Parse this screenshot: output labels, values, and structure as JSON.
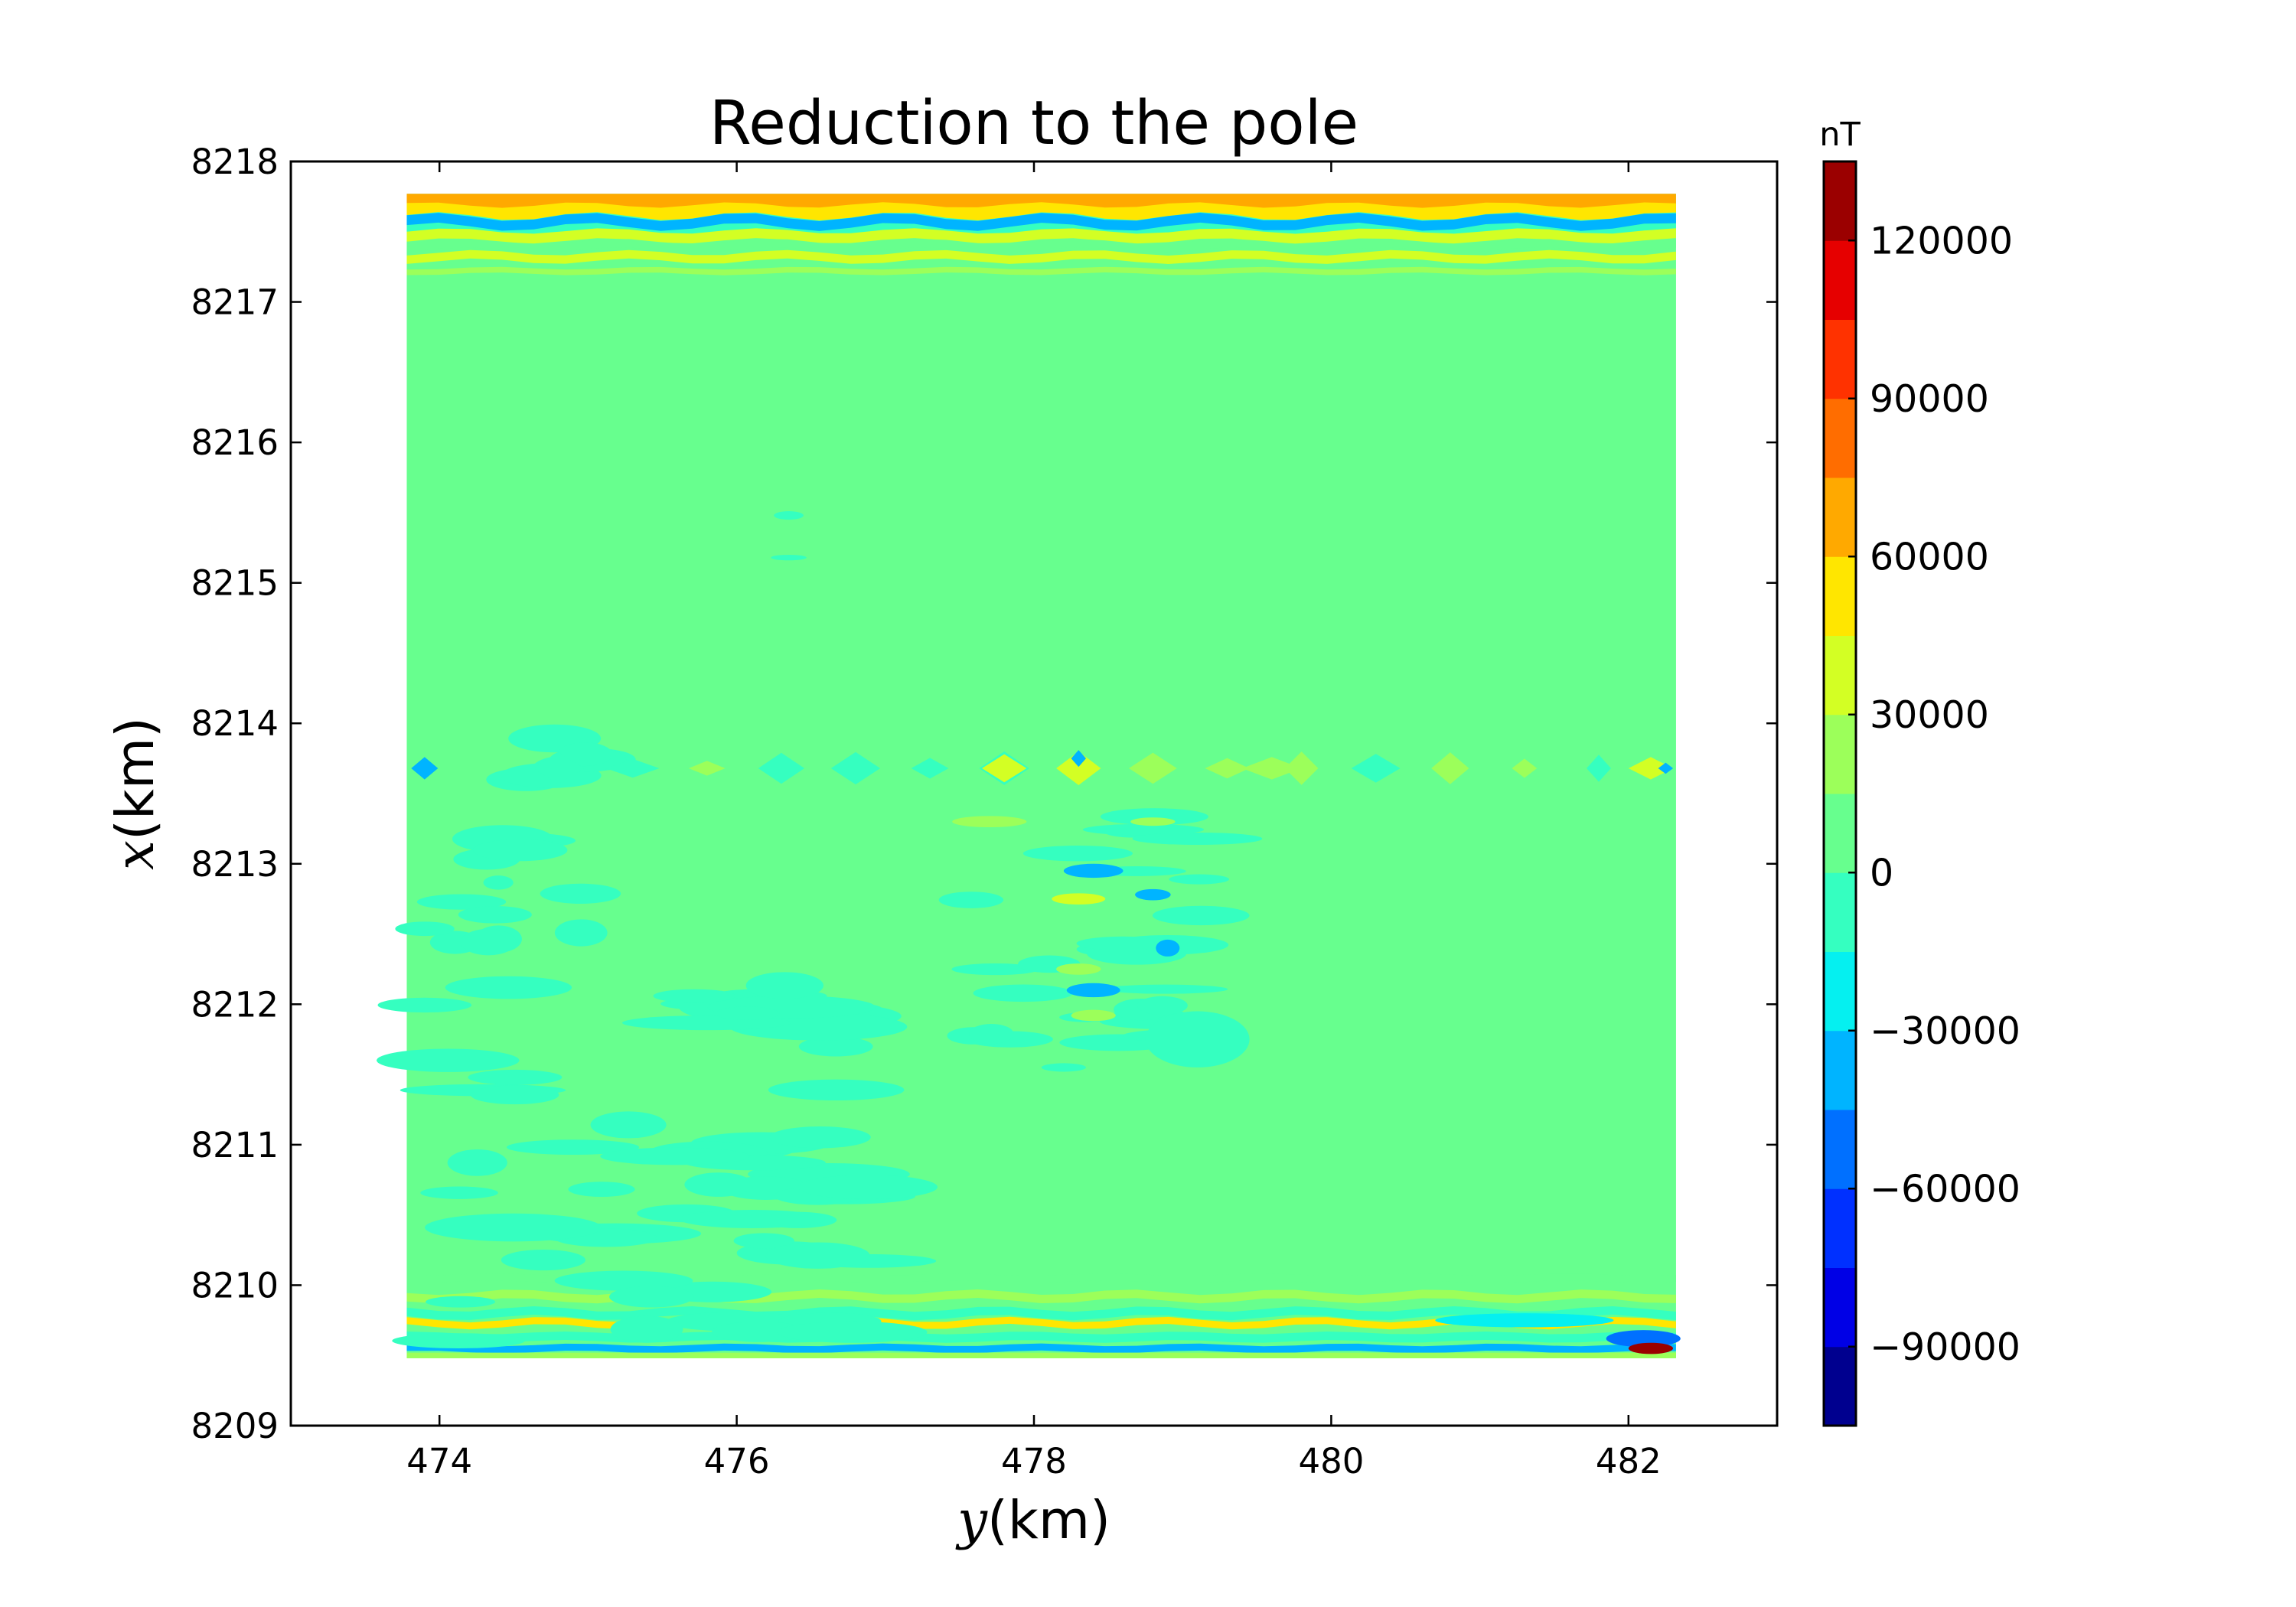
{
  "chart_data": {
    "type": "heatmap",
    "subtype": "filled-contour",
    "title": "Reduction to the pole",
    "xlabel_var": "y",
    "xlabel_unit": "(km)",
    "ylabel_var": "x",
    "ylabel_unit": "(km)",
    "xlim": [
      473,
      483
    ],
    "ylim": [
      8209,
      8218
    ],
    "xticks": [
      474,
      476,
      478,
      480,
      482
    ],
    "yticks": [
      8209,
      8210,
      8211,
      8212,
      8213,
      8214,
      8215,
      8216,
      8217,
      8218
    ],
    "data_extent": {
      "y_min": 473.78,
      "y_max": 482.32,
      "x_min": 8209.48,
      "x_max": 8217.77
    },
    "colorbar": {
      "label": "nT",
      "min": -105000,
      "max": 135000,
      "level_step": 15000,
      "ticks": [
        -90000,
        -60000,
        -30000,
        0,
        30000,
        60000,
        90000,
        120000
      ],
      "tick_labels": [
        "−90000",
        "−60000",
        "−30000",
        "0",
        "30000",
        "60000",
        "90000",
        "120000"
      ],
      "colors": [
        "#00008f",
        "#0000e6",
        "#0030ff",
        "#0070ff",
        "#00b4ff",
        "#05f0f0",
        "#35ffc0",
        "#67ff8e",
        "#9cff5a",
        "#d3ff24",
        "#ffe600",
        "#ffa900",
        "#ff6d00",
        "#ff3200",
        "#e60000",
        "#9b0000"
      ]
    },
    "background_level_nT": 0,
    "regions": [
      {
        "name": "north-edge-strong-band",
        "y_range": [
          473.8,
          482.3
        ],
        "x_range": [
          8217.3,
          8217.77
        ],
        "approx_range_nT": [
          -90000,
          75000
        ]
      },
      {
        "name": "south-edge-strong-band",
        "y_range": [
          473.8,
          482.3
        ],
        "x_range": [
          8209.48,
          8210.1
        ],
        "approx_range_nT": [
          -90000,
          120000
        ]
      },
      {
        "name": "mid-line-anomalies",
        "y_range": [
          473.8,
          482.3
        ],
        "x_range": [
          8213.5,
          8213.85
        ],
        "approx_range_nT": [
          -60000,
          45000
        ]
      },
      {
        "name": "central-anomaly-cluster",
        "y_range": [
          477.3,
          479.4
        ],
        "x_range": [
          8211.5,
          8213.5
        ],
        "approx_range_nT": [
          -60000,
          45000
        ]
      },
      {
        "name": "southwest-weak-negative",
        "y_range": [
          473.8,
          477.0
        ],
        "x_range": [
          8209.5,
          8212.3
        ],
        "approx_range_nT": [
          -15000,
          0
        ]
      },
      {
        "name": "west-weak-negative",
        "y_range": [
          473.8,
          475.2
        ],
        "x_range": [
          8212.2,
          8214.2
        ],
        "approx_range_nT": [
          -15000,
          0
        ]
      }
    ]
  }
}
